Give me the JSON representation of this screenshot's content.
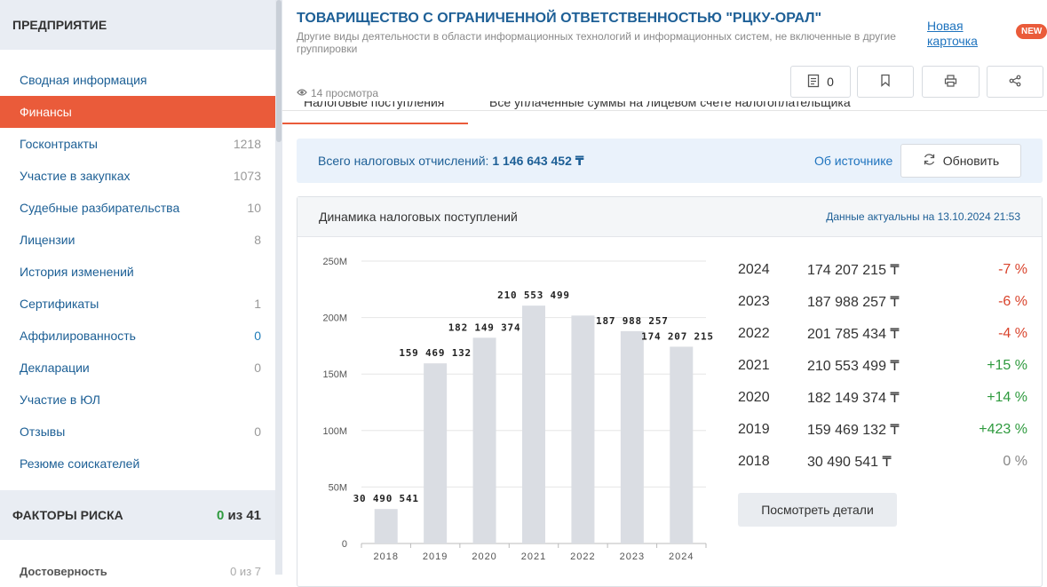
{
  "sidebar": {
    "header": "ПРЕДПРИЯТИЕ",
    "items": [
      {
        "label": "Сводная информация",
        "count": ""
      },
      {
        "label": "Финансы",
        "count": ""
      },
      {
        "label": "Госконтракты",
        "count": "1218"
      },
      {
        "label": "Участие в закупках",
        "count": "1073"
      },
      {
        "label": "Судебные разбирательства",
        "count": "10"
      },
      {
        "label": "Лицензии",
        "count": "8"
      },
      {
        "label": "История изменений",
        "count": ""
      },
      {
        "label": "Сертификаты",
        "count": "1"
      },
      {
        "label": "Аффилированность",
        "count": "0"
      },
      {
        "label": "Декларации",
        "count": "0"
      },
      {
        "label": "Участие в ЮЛ",
        "count": ""
      },
      {
        "label": "Отзывы",
        "count": "0"
      },
      {
        "label": "Резюме соискателей",
        "count": ""
      }
    ],
    "risk": {
      "label": "ФАКТОРЫ РИСКА",
      "value": "0",
      "of": "из 41"
    },
    "cut_item": {
      "label": "Достоверность",
      "count": "0 из 7"
    }
  },
  "header": {
    "title": "ТОВАРИЩЕСТВО С ОГРАНИЧЕННОЙ ОТВЕТСТВЕННОСТЬЮ \"РЦКУ-ОРАЛ\"",
    "subtitle": "Другие виды деятельности в области информационных технологий и информационных систем, не включенные в другие группировки",
    "new_card": "Новая карточка",
    "new_badge": "NEW",
    "views": "14 просмотра",
    "notes_count": "0"
  },
  "tabs": [
    {
      "label": "Налоговые поступления"
    },
    {
      "label": "Все уплаченные суммы на лицевом счете налогоплательщика"
    }
  ],
  "total": {
    "label": "Всего налоговых отчислений:",
    "value": "1 146 643 452 ₸",
    "source_link": "Об источнике",
    "refresh_label": "Обновить"
  },
  "card": {
    "title": "Динамика налоговых поступлений",
    "date": "Данные актуальны на 13.10.2024 21:53",
    "details_button": "Посмотреть детали"
  },
  "stats": [
    {
      "year": "2024",
      "amount": "174 207 215 ₸",
      "change": "-7 %",
      "kind": "neg"
    },
    {
      "year": "2023",
      "amount": "187 988 257 ₸",
      "change": "-6 %",
      "kind": "neg"
    },
    {
      "year": "2022",
      "amount": "201 785 434 ₸",
      "change": "-4 %",
      "kind": "neg"
    },
    {
      "year": "2021",
      "amount": "210 553 499 ₸",
      "change": "+15 %",
      "kind": "pos"
    },
    {
      "year": "2020",
      "amount": "182 149 374 ₸",
      "change": "+14 %",
      "kind": "pos"
    },
    {
      "year": "2019",
      "amount": "159 469 132 ₸",
      "change": "+423 %",
      "kind": "pos"
    },
    {
      "year": "2018",
      "amount": "30 490 541 ₸",
      "change": "0 %",
      "kind": "zero"
    }
  ],
  "chart_data": {
    "type": "bar",
    "categories": [
      "2018",
      "2019",
      "2020",
      "2021",
      "2022",
      "2023",
      "2024"
    ],
    "values": [
      30490541,
      159469132,
      182149374,
      210553499,
      201785434,
      187988257,
      174207215
    ],
    "data_labels": [
      "30 490 541",
      "159 469 132",
      "182 149 374",
      "210 553 499",
      "",
      "187 988 257",
      "174 207 215"
    ],
    "ylim": [
      0,
      250000000
    ],
    "yticks": [
      0,
      50000000,
      100000000,
      150000000,
      200000000,
      250000000
    ],
    "ytick_labels": [
      "0",
      "50M",
      "100M",
      "150M",
      "200M",
      "250M"
    ],
    "grid": true,
    "bar_color": "#dadde3"
  },
  "colors": {
    "accent": "#ea5b3a",
    "link": "#1d5f96",
    "positive": "#2e9a3e",
    "negative": "#d9432c"
  }
}
